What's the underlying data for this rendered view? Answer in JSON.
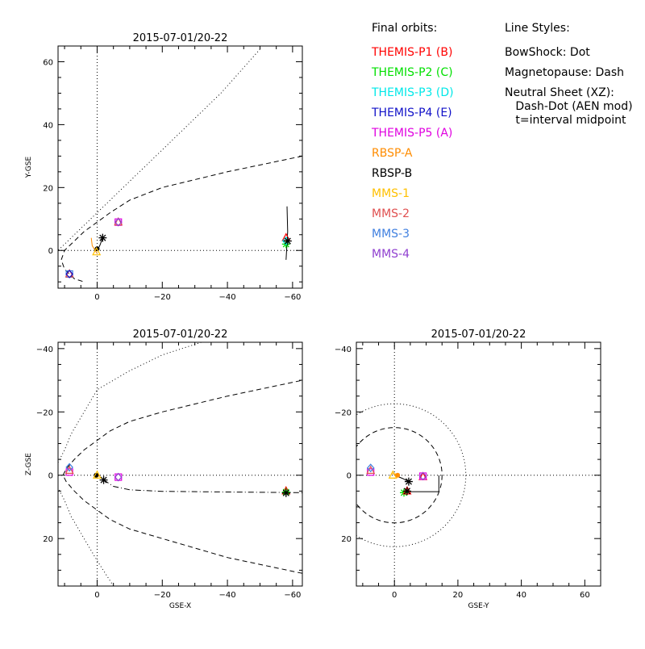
{
  "legend": {
    "orbits_title": "Final orbits:",
    "orbits": [
      {
        "label": "THEMIS-P1 (B)",
        "color": "#ff0000"
      },
      {
        "label": "THEMIS-P2 (C)",
        "color": "#00e000"
      },
      {
        "label": "THEMIS-P3 (D)",
        "color": "#00e8e8"
      },
      {
        "label": "THEMIS-P4 (E)",
        "color": "#1010c8"
      },
      {
        "label": "THEMIS-P5 (A)",
        "color": "#e000e0"
      },
      {
        "label": "RBSP-A",
        "color": "#ff8c00"
      },
      {
        "label": "RBSP-B",
        "color": "#000000"
      },
      {
        "label": "MMS-1",
        "color": "#ffc000"
      },
      {
        "label": "MMS-2",
        "color": "#e05050"
      },
      {
        "label": "MMS-3",
        "color": "#4080e0"
      },
      {
        "label": "MMS-4",
        "color": "#9040d0"
      }
    ],
    "styles_title": "Line Styles:",
    "styles": [
      "BowShock: Dot",
      "Magnetopause: Dash",
      "Neutral Sheet (XZ):",
      "   Dash-Dot (AEN mod)",
      "   t=interval midpoint"
    ]
  },
  "chart_data": [
    {
      "type": "line",
      "title": "2015-07-01/20-22",
      "xlabel": "",
      "ylabel": "Y-GSE",
      "xlim": [
        12,
        -63
      ],
      "ylim": [
        65,
        -12
      ],
      "xticks": [
        0,
        -20,
        -40,
        -60
      ],
      "xtick_labels": [
        "0",
        "−20",
        "−40",
        "−60"
      ],
      "yticks": [
        0,
        20,
        40,
        60
      ],
      "ytick_labels": [
        "0",
        "20",
        "40",
        "60"
      ],
      "series": [
        {
          "style": "dot",
          "x": [
            -50,
            -38,
            -28,
            -18,
            -8,
            0,
            6,
            10,
            12
          ],
          "y": [
            64,
            50,
            40,
            30,
            20,
            12,
            6,
            2,
            0
          ]
        },
        {
          "style": "dash",
          "x": [
            -63,
            -40,
            -20,
            -10,
            -4,
            0,
            4,
            7,
            10,
            11,
            10,
            7,
            4
          ],
          "y": [
            30,
            25,
            20,
            16,
            12,
            9,
            6,
            3,
            0,
            -3,
            -6,
            -9,
            -10
          ]
        },
        {
          "style": "solid",
          "color": "#000000",
          "x": [
            -58,
            -58.5,
            -58.3
          ],
          "y": [
            -3,
            6,
            14
          ]
        },
        {
          "style": "solid",
          "color": "#000000",
          "x": [
            0,
            -0.8,
            -1.7
          ],
          "y": [
            0,
            1.5,
            4
          ]
        },
        {
          "style": "solid",
          "color": "#ff8c00",
          "x": [
            0,
            1.5,
            1.8
          ],
          "y": [
            -1,
            1.5,
            4
          ]
        }
      ],
      "markers": [
        {
          "sym": "tri",
          "color": "#ff0000",
          "x": -58,
          "y": 4
        },
        {
          "sym": "star",
          "color": "#00e000",
          "x": -58,
          "y": 2
        },
        {
          "sym": "diamond",
          "color": "#00e8e8",
          "x": -58,
          "y": 3
        },
        {
          "sym": "star",
          "color": "#000000",
          "x": -58.5,
          "y": 3
        },
        {
          "sym": "star",
          "color": "#000000",
          "x": -1.7,
          "y": 4
        },
        {
          "sym": "square",
          "color": "#e000e0",
          "x": -6.5,
          "y": 9
        },
        {
          "sym": "tri",
          "color": "#e05050",
          "x": -6.5,
          "y": 9
        },
        {
          "sym": "diamond",
          "color": "#9040d0",
          "x": -6.5,
          "y": 9
        },
        {
          "sym": "square",
          "color": "#4080e0",
          "x": 8.5,
          "y": -7.5
        },
        {
          "sym": "tri",
          "color": "#e05050",
          "x": 8.5,
          "y": -7.5
        },
        {
          "sym": "diamond",
          "color": "#1010c8",
          "x": 8.5,
          "y": -7.5
        },
        {
          "sym": "dot",
          "color": "#000000",
          "x": 0,
          "y": 0.5
        },
        {
          "sym": "tri",
          "color": "#ffc000",
          "x": 0.2,
          "y": -0.5
        }
      ]
    },
    {
      "type": "line",
      "title": "2015-07-01/20-22",
      "xlabel": "GSE-X",
      "ylabel": "Z-GSE",
      "xlim": [
        12,
        -63
      ],
      "ylim": [
        -42,
        35
      ],
      "xticks": [
        0,
        -20,
        -40,
        -60
      ],
      "xtick_labels": [
        "0",
        "−20",
        "−40",
        "−60"
      ],
      "yticks": [
        -40,
        -20,
        0,
        20
      ],
      "ytick_labels": [
        "−40",
        "−20",
        "0",
        "20"
      ],
      "series": [
        {
          "style": "dot",
          "x": [
            -5,
            0,
            4,
            8,
            10,
            12
          ],
          "y": [
            35,
            27,
            20,
            13,
            8,
            4
          ]
        },
        {
          "style": "dot",
          "x": [
            12,
            10,
            8,
            4,
            0,
            -10,
            -20,
            -32
          ],
          "y": [
            -4,
            -8,
            -13,
            -20,
            -27,
            -33,
            -38,
            -42
          ]
        },
        {
          "style": "dash",
          "x": [
            -63,
            -40,
            -20,
            -10,
            -4,
            0,
            4,
            7,
            9.5,
            10.5
          ],
          "y": [
            31,
            26,
            20,
            17,
            14,
            11,
            8,
            5,
            2,
            0
          ]
        },
        {
          "style": "dash",
          "x": [
            10.5,
            9.5,
            7,
            4,
            0,
            -4,
            -10,
            -20,
            -40,
            -63
          ],
          "y": [
            0,
            -2,
            -5,
            -8,
            -11,
            -14,
            -17,
            -20,
            -25,
            -30
          ]
        },
        {
          "style": "dashdot",
          "x": [
            -2,
            -5,
            -10,
            -20,
            -40,
            -63
          ],
          "y": [
            1.5,
            3.5,
            4.6,
            5.1,
            5.3,
            5.5
          ]
        },
        {
          "style": "solid",
          "color": "#ff8c00",
          "x": [
            0.6,
            -0.3,
            -0.6
          ],
          "y": [
            -0.6,
            -0.3,
            0.4
          ]
        }
      ],
      "markers": [
        {
          "sym": "tri",
          "color": "#ff0000",
          "x": -58,
          "y": 5
        },
        {
          "sym": "star",
          "color": "#00e000",
          "x": -58,
          "y": 5.3
        },
        {
          "sym": "star",
          "color": "#000000",
          "x": -58,
          "y": 5.6
        },
        {
          "sym": "star",
          "color": "#000000",
          "x": -2,
          "y": 1.5
        },
        {
          "sym": "square",
          "color": "#e000e0",
          "x": -6.5,
          "y": 0.6
        },
        {
          "sym": "diamond",
          "color": "#9040d0",
          "x": -6.5,
          "y": 0.6
        },
        {
          "sym": "square",
          "color": "#e000e0",
          "x": 8.5,
          "y": -1
        },
        {
          "sym": "tri",
          "color": "#e05050",
          "x": 8.5,
          "y": -1.5
        },
        {
          "sym": "diamond",
          "color": "#4080e0",
          "x": 8.5,
          "y": -2.5
        },
        {
          "sym": "dot",
          "color": "#000000",
          "x": 0.3,
          "y": 0
        },
        {
          "sym": "tri",
          "color": "#ffc000",
          "x": 0,
          "y": 0
        }
      ]
    },
    {
      "type": "line",
      "title": "2015-07-01/20-22",
      "xlabel": "GSE-Y",
      "ylabel": "",
      "xlim": [
        -12,
        65
      ],
      "ylim": [
        -42,
        35
      ],
      "xticks": [
        0,
        20,
        40,
        60
      ],
      "xtick_labels": [
        "0",
        "20",
        "40",
        "60"
      ],
      "yticks": [
        -40,
        -20,
        0,
        20
      ],
      "ytick_labels": [
        "−40",
        "−20",
        "0",
        "20"
      ],
      "series": [
        {
          "style": "circle-dot",
          "r": 22.5
        },
        {
          "style": "circle-dash",
          "r": 15
        },
        {
          "style": "solid",
          "color": "#000000",
          "x": [
            3.5,
            14,
            14
          ],
          "y": [
            5.2,
            5.2,
            0
          ]
        },
        {
          "style": "solid",
          "color": "#000000",
          "x": [
            0,
            2.5,
            4.5
          ],
          "y": [
            0,
            1,
            2
          ]
        },
        {
          "style": "solid",
          "color": "#ff8c00",
          "x": [
            -1,
            0.5,
            1.5
          ],
          "y": [
            -0.5,
            -0.4,
            0
          ]
        }
      ],
      "markers": [
        {
          "sym": "star",
          "color": "#00e000",
          "x": 3,
          "y": 5.5
        },
        {
          "sym": "tri",
          "color": "#ff0000",
          "x": 4,
          "y": 5
        },
        {
          "sym": "star",
          "color": "#000000",
          "x": 4,
          "y": 5
        },
        {
          "sym": "star",
          "color": "#000000",
          "x": 4.5,
          "y": 2
        },
        {
          "sym": "tri",
          "color": "#ff0000",
          "x": 9,
          "y": 0.5
        },
        {
          "sym": "square",
          "color": "#e000e0",
          "x": 9,
          "y": 0.3
        },
        {
          "sym": "diamond",
          "color": "#9040d0",
          "x": 9,
          "y": 0.3
        },
        {
          "sym": "square",
          "color": "#e000e0",
          "x": -7.5,
          "y": -1
        },
        {
          "sym": "tri",
          "color": "#e05050",
          "x": -7.5,
          "y": -1.5
        },
        {
          "sym": "diamond",
          "color": "#4080e0",
          "x": -7.5,
          "y": -2.3
        },
        {
          "sym": "tri",
          "color": "#ffc000",
          "x": -0.5,
          "y": 0
        },
        {
          "sym": "dot",
          "color": "#ff8c00",
          "x": 1,
          "y": 0
        }
      ]
    }
  ]
}
